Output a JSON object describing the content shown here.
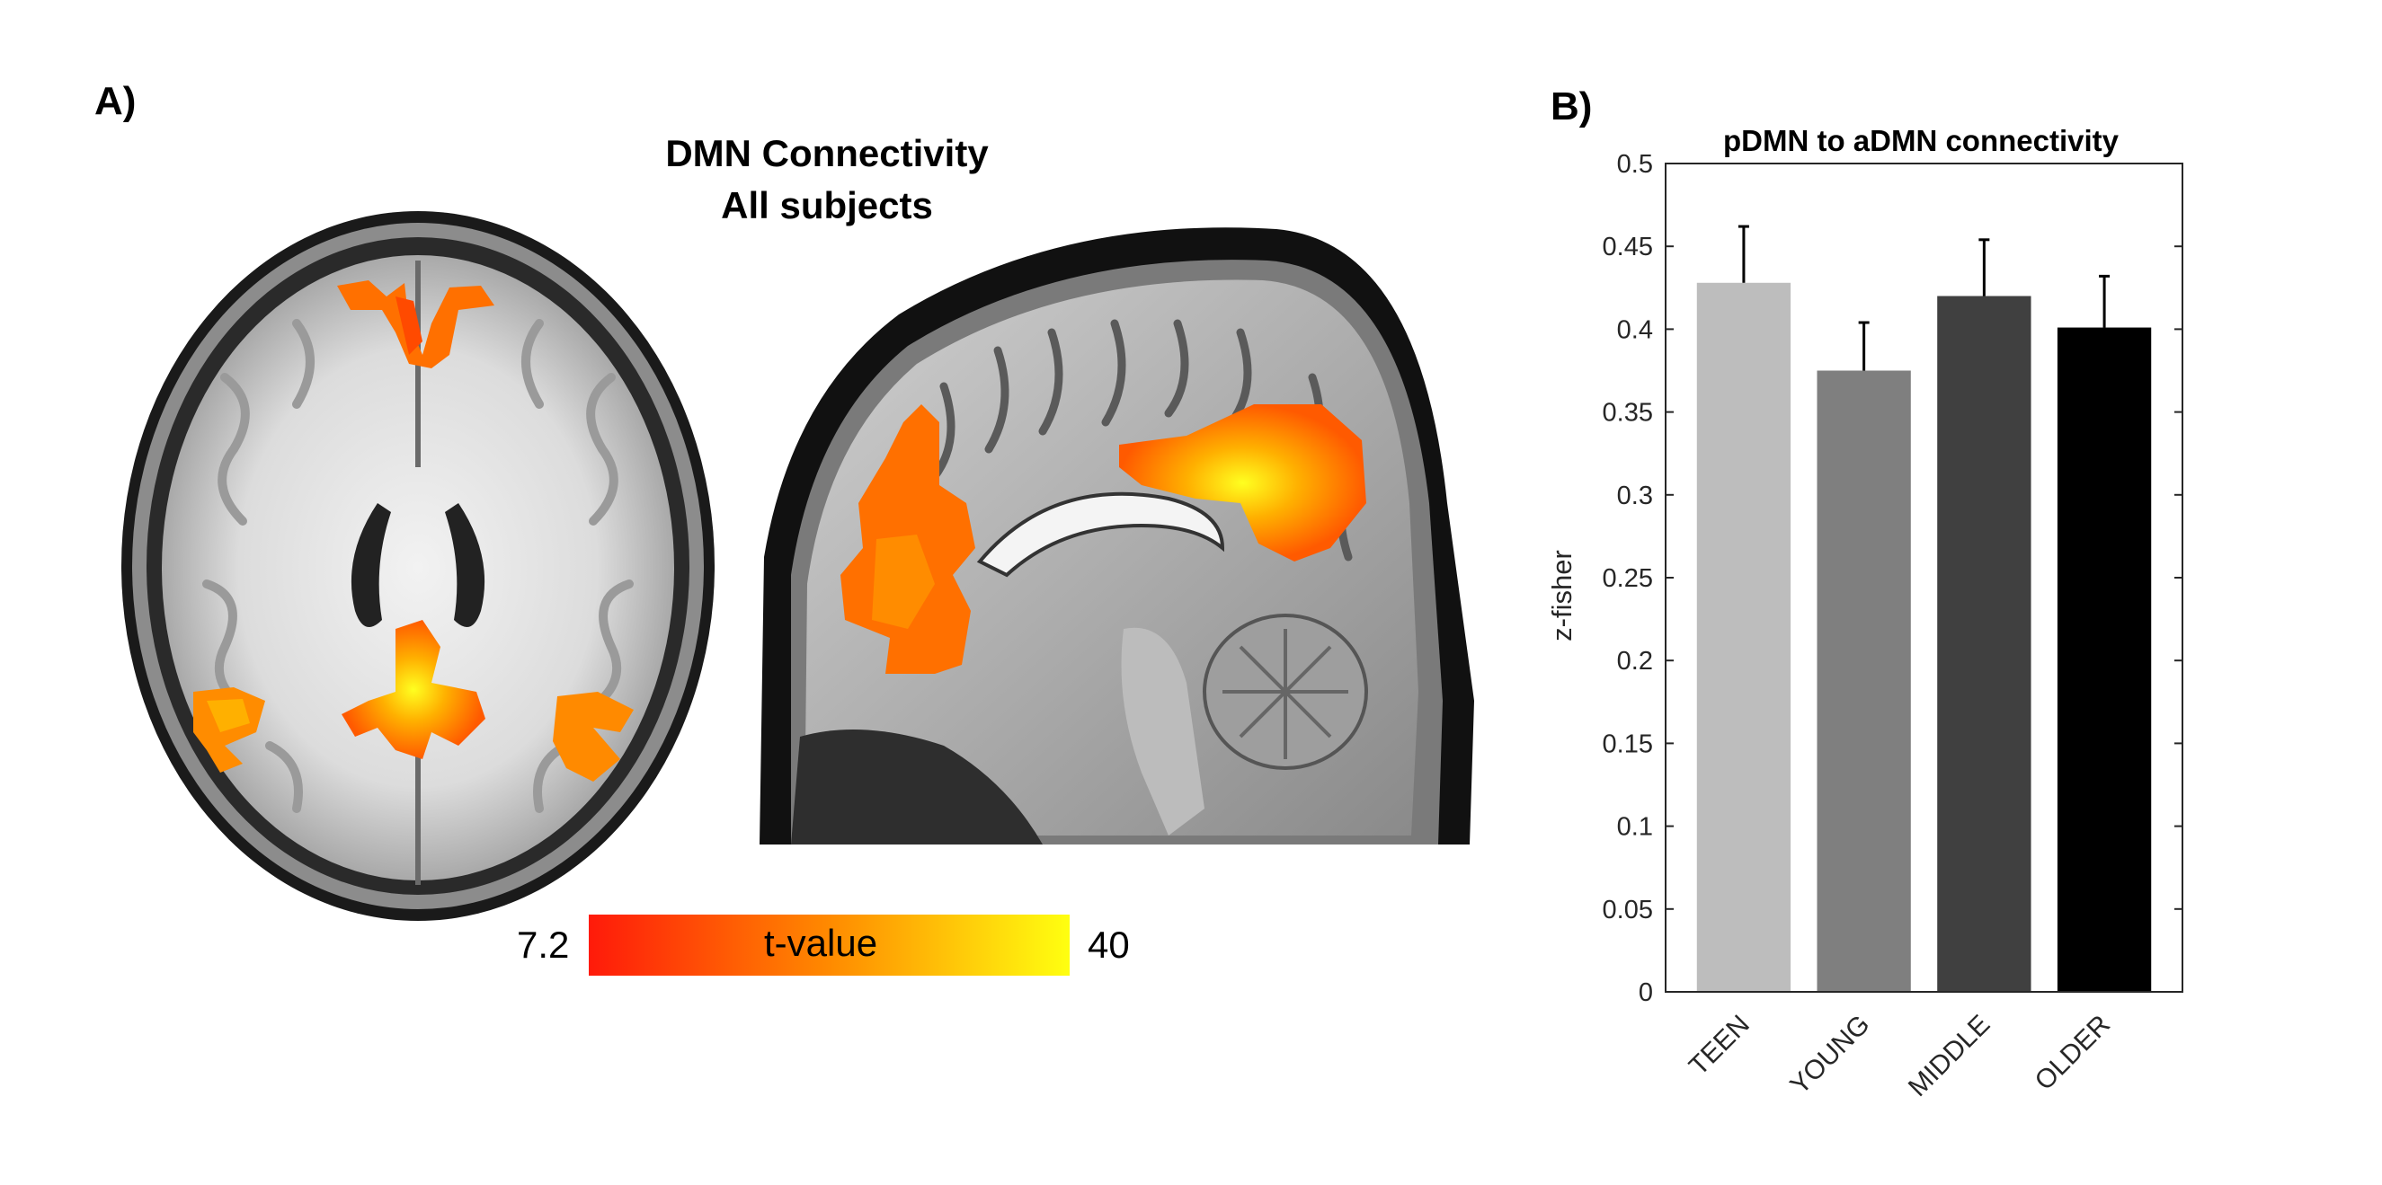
{
  "panel_a": {
    "label": "A)",
    "title_line1": "DMN Connectivity",
    "title_line2": "All subjects",
    "colorbar": {
      "min_label": "7.2",
      "max_label": "40",
      "label": "t-value",
      "color_low": "#ff1a0a",
      "color_mid": "#ff8a00",
      "color_high": "#ffff10"
    }
  },
  "panel_b": {
    "label": "B)"
  },
  "chart_data": {
    "type": "bar",
    "title": "pDMN to aDMN connectivity",
    "ylabel": "z-fisher",
    "xlabel": "",
    "categories": [
      "TEEN",
      "YOUNG",
      "MIDDLE",
      "OLDER"
    ],
    "values": [
      0.428,
      0.375,
      0.42,
      0.401
    ],
    "errors": [
      0.034,
      0.029,
      0.034,
      0.031
    ],
    "colors": [
      "#bdbdbd",
      "#7f7f7f",
      "#404040",
      "#000000"
    ],
    "ylim": [
      0,
      0.5
    ],
    "yticks": [
      0,
      0.05,
      0.1,
      0.15,
      0.2,
      0.25,
      0.3,
      0.35,
      0.4,
      0.45,
      0.5
    ],
    "ytick_labels": [
      "0",
      "0.05",
      "0.1",
      "0.15",
      "0.2",
      "0.25",
      "0.3",
      "0.35",
      "0.4",
      "0.45",
      "0.5"
    ],
    "grid": false
  }
}
